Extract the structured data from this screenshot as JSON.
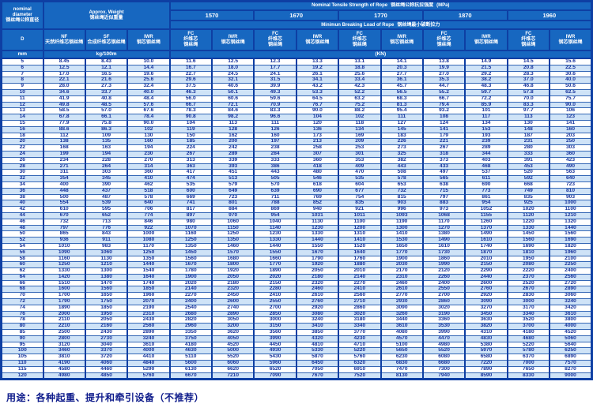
{
  "header": {
    "nominal_en1": "nominal",
    "nominal_en2": "diameter",
    "nominal_zh": "钢丝绳公称直径",
    "d": "D",
    "mm": "mm",
    "weight_en": "Approx. Weight",
    "weight_zh": "钢丝绳近似重量",
    "weight_unit": "kg/100m",
    "nf": "NF",
    "nf_zh": "天然纤维芯钢丝绳",
    "sf": "SF",
    "sf_zh": "合成纤维芯钢丝绳",
    "iwrw": "IWR",
    "iwrw_zh": "钢芯钢丝绳",
    "tensile_en": "Nominal Tensile Strength of Rope",
    "tensile_zh": "钢丝绳公称抗拉强度",
    "tensile_unit": "(MPa)",
    "strength_values": [
      "1570",
      "1670",
      "1770",
      "1870",
      "1960"
    ],
    "breaking_en": "Minimun Breaking Load of Rope",
    "breaking_zh": "钢丝绳最小破断拉力",
    "load_unit": "(KN)",
    "fc": "FC",
    "fc_zh1": "纤维芯",
    "fc_zh2": "钢丝绳",
    "iwr": "IWR",
    "iwr_zh": "钢芯钢丝绳"
  },
  "note": "用途：各种起重、提升和牵引设备（不推荐）",
  "colors": {
    "border": "#0e3fa3",
    "header_bg": "#1767c0",
    "stripe": "#cfe3f7",
    "data_text": "#17339c"
  },
  "table": {
    "rows": [
      [
        "5",
        "8.45",
        "8.43",
        "10.0",
        "11.6",
        "12.5",
        "12.3",
        "13.3",
        "13.1",
        "14.1",
        "13.8",
        "14.9",
        "14.5",
        "15.6"
      ],
      [
        "6",
        "12.5",
        "12.1",
        "14.4",
        "16.7",
        "18.0",
        "17.7",
        "19.2",
        "18.8",
        "20.3",
        "19.9",
        "21.5",
        "20.8",
        "22.5"
      ],
      [
        "7",
        "17.0",
        "16.5",
        "19.6",
        "22.7",
        "24.5",
        "24.1",
        "26.1",
        "25.6",
        "27.7",
        "27.0",
        "29.2",
        "28.3",
        "30.6"
      ],
      [
        "8",
        "22.1",
        "21.6",
        "25.6",
        "29.6",
        "32.1",
        "31.5",
        "34.1",
        "33.4",
        "36.1",
        "35.3",
        "38.2",
        "37.0",
        "40.0"
      ],
      [
        "9",
        "28.0",
        "27.3",
        "32.4",
        "37.5",
        "40.6",
        "39.9",
        "43.2",
        "42.3",
        "45.7",
        "44.7",
        "48.3",
        "46.8",
        "50.6"
      ],
      [
        "10",
        "34.6",
        "33.7",
        "40.0",
        "46.3",
        "50.1",
        "49.3",
        "53.3",
        "52.2",
        "56.5",
        "55.2",
        "59.7",
        "57.8",
        "62.5"
      ],
      [
        "11",
        "41.9",
        "40.8",
        "48.4",
        "56.0",
        "60.6",
        "59.6",
        "64.5",
        "63.2",
        "68.3",
        "66.7",
        "72.2",
        "70.0",
        "75.7"
      ],
      [
        "12",
        "49.8",
        "48.5",
        "57.6",
        "66.7",
        "72.1",
        "70.9",
        "76.7",
        "75.2",
        "81.3",
        "79.4",
        "85.9",
        "83.3",
        "90.0"
      ],
      [
        "13",
        "58.5",
        "57.0",
        "67.6",
        "78.3",
        "84.6",
        "83.3",
        "90.0",
        "88.2",
        "95.4",
        "93.2",
        "101",
        "97.7",
        "106"
      ],
      [
        "14",
        "67.8",
        "66.1",
        "78.4",
        "90.8",
        "98.2",
        "96.6",
        "104",
        "102",
        "111",
        "108",
        "117",
        "113",
        "123"
      ],
      [
        "15",
        "77.9",
        "75.8",
        "90.0",
        "104",
        "113",
        "111",
        "120",
        "118",
        "127",
        "124",
        "134",
        "130",
        "141"
      ],
      [
        "16",
        "88.6",
        "86.3",
        "102",
        "119",
        "128",
        "126",
        "136",
        "134",
        "145",
        "141",
        "153",
        "148",
        "160"
      ],
      [
        "18",
        "112",
        "109",
        "130",
        "150",
        "162",
        "160",
        "173",
        "169",
        "183",
        "179",
        "193",
        "187",
        "203"
      ],
      [
        "20",
        "138",
        "135",
        "160",
        "185",
        "200",
        "197",
        "213",
        "209",
        "226",
        "221",
        "239",
        "231",
        "250"
      ],
      [
        "22",
        "168",
        "163",
        "194",
        "224",
        "242",
        "238",
        "258",
        "253",
        "273",
        "267",
        "289",
        "280",
        "303"
      ],
      [
        "24",
        "199",
        "194",
        "230",
        "267",
        "289",
        "284",
        "307",
        "301",
        "325",
        "318",
        "344",
        "333",
        "360"
      ],
      [
        "26",
        "234",
        "228",
        "270",
        "313",
        "339",
        "333",
        "360",
        "353",
        "382",
        "373",
        "403",
        "391",
        "423"
      ],
      [
        "28",
        "271",
        "264",
        "314",
        "363",
        "393",
        "386",
        "418",
        "409",
        "443",
        "433",
        "468",
        "453",
        "490"
      ],
      [
        "30",
        "311",
        "303",
        "360",
        "417",
        "451",
        "443",
        "480",
        "470",
        "508",
        "497",
        "537",
        "520",
        "563"
      ],
      [
        "32",
        "354",
        "345",
        "410",
        "474",
        "513",
        "505",
        "546",
        "535",
        "578",
        "565",
        "611",
        "592",
        "640"
      ],
      [
        "34",
        "400",
        "390",
        "462",
        "535",
        "579",
        "570",
        "618",
        "604",
        "653",
        "638",
        "690",
        "668",
        "723"
      ],
      [
        "36",
        "448",
        "437",
        "518",
        "600",
        "649",
        "639",
        "690",
        "677",
        "732",
        "715",
        "773",
        "749",
        "810"
      ],
      [
        "38",
        "500",
        "487",
        "578",
        "669",
        "723",
        "711",
        "769",
        "754",
        "815",
        "797",
        "861",
        "835",
        "903"
      ],
      [
        "40",
        "554",
        "539",
        "640",
        "741",
        "801",
        "788",
        "852",
        "835",
        "903",
        "883",
        "954",
        "925",
        "1000"
      ],
      [
        "42",
        "610",
        "595",
        "706",
        "817",
        "884",
        "869",
        "940",
        "921",
        "996",
        "973",
        "1052",
        "1020",
        "1100"
      ],
      [
        "44",
        "670",
        "652",
        "774",
        "897",
        "970",
        "954",
        "1031",
        "1011",
        "1093",
        "1068",
        "1155",
        "1120",
        "1210"
      ],
      [
        "46",
        "732",
        "713",
        "846",
        "980",
        "1060",
        "1040",
        "1130",
        "1100",
        "1190",
        "1170",
        "1260",
        "1220",
        "1320"
      ],
      [
        "48",
        "797",
        "776",
        "922",
        "1070",
        "1150",
        "1140",
        "1230",
        "1200",
        "1300",
        "1270",
        "1370",
        "1330",
        "1440"
      ],
      [
        "50",
        "865",
        "843",
        "1000",
        "1160",
        "1250",
        "1230",
        "1330",
        "1310",
        "1410",
        "1380",
        "1490",
        "1450",
        "1560"
      ],
      [
        "52",
        "936",
        "911",
        "1080",
        "1250",
        "1350",
        "1330",
        "1440",
        "1410",
        "1530",
        "1490",
        "1610",
        "1560",
        "1690"
      ],
      [
        "54",
        "1010",
        "983",
        "1170",
        "1350",
        "1460",
        "1440",
        "1550",
        "1520",
        "1650",
        "1610",
        "1740",
        "1690",
        "1820"
      ],
      [
        "56",
        "1090",
        "1060",
        "1250",
        "1450",
        "1570",
        "1550",
        "1670",
        "1640",
        "1770",
        "1730",
        "1870",
        "1810",
        "1960"
      ],
      [
        "58",
        "1160",
        "1130",
        "1350",
        "1560",
        "1680",
        "1660",
        "1790",
        "1760",
        "1900",
        "1860",
        "2010",
        "1950",
        "2100"
      ],
      [
        "60",
        "1250",
        "1210",
        "1440",
        "1670",
        "1800",
        "1770",
        "1920",
        "1880",
        "2030",
        "1990",
        "2150",
        "2080",
        "2250"
      ],
      [
        "62",
        "1330",
        "1300",
        "1540",
        "1780",
        "1920",
        "1890",
        "2050",
        "2010",
        "2170",
        "2120",
        "2290",
        "2220",
        "2400"
      ],
      [
        "64",
        "1420",
        "1380",
        "1640",
        "1900",
        "2050",
        "2020",
        "2180",
        "2140",
        "2310",
        "2260",
        "2440",
        "2370",
        "2560"
      ],
      [
        "66",
        "1510",
        "1470",
        "1740",
        "2020",
        "2180",
        "2150",
        "2320",
        "2270",
        "2460",
        "2400",
        "2600",
        "2520",
        "2720"
      ],
      [
        "68",
        "1600",
        "1560",
        "1850",
        "2140",
        "2320",
        "2280",
        "2460",
        "2410",
        "2610",
        "2550",
        "2760",
        "2670",
        "2890"
      ],
      [
        "70",
        "1700",
        "1650",
        "1960",
        "2270",
        "2450",
        "2410",
        "2610",
        "2560",
        "2770",
        "2700",
        "2920",
        "2830",
        "3060"
      ],
      [
        "72",
        "1790",
        "1750",
        "2070",
        "2400",
        "2600",
        "2550",
        "2760",
        "2710",
        "2930",
        "2860",
        "3090",
        "3000",
        "3240"
      ],
      [
        "74",
        "1890",
        "1850",
        "2190",
        "2540",
        "2740",
        "2700",
        "2920",
        "2860",
        "3090",
        "3020",
        "3270",
        "3170",
        "3420"
      ],
      [
        "76",
        "2000",
        "1950",
        "2310",
        "2680",
        "2890",
        "2850",
        "3080",
        "3020",
        "3260",
        "3190",
        "3450",
        "3340",
        "3610"
      ],
      [
        "78",
        "2110",
        "2050",
        "2430",
        "2820",
        "3050",
        "3000",
        "3240",
        "3180",
        "3440",
        "3360",
        "3630",
        "3520",
        "3800"
      ],
      [
        "80",
        "2210",
        "2160",
        "2560",
        "2960",
        "3200",
        "3150",
        "3410",
        "3340",
        "3610",
        "3530",
        "3820",
        "3700",
        "4000"
      ],
      [
        "85",
        "2500",
        "2430",
        "2890",
        "3350",
        "3620",
        "3560",
        "3850",
        "3770",
        "4080",
        "3990",
        "4310",
        "4180",
        "4520"
      ],
      [
        "90",
        "2800",
        "2730",
        "3240",
        "3750",
        "4050",
        "3990",
        "4320",
        "4230",
        "4570",
        "4470",
        "4830",
        "4680",
        "5060"
      ],
      [
        "95",
        "3120",
        "3040",
        "3610",
        "4180",
        "4520",
        "4450",
        "4810",
        "4710",
        "5100",
        "4980",
        "5380",
        "5220",
        "5640"
      ],
      [
        "100",
        "3460",
        "3370",
        "4000",
        "4630",
        "5000",
        "4930",
        "5330",
        "5220",
        "5650",
        "5520",
        "5970",
        "5780",
        "6250"
      ],
      [
        "105",
        "3810",
        "3720",
        "4410",
        "5110",
        "5520",
        "5430",
        "5870",
        "5760",
        "6230",
        "6080",
        "6580",
        "6370",
        "6890"
      ],
      [
        "110",
        "4190",
        "4060",
        "4840",
        "5600",
        "6060",
        "5960",
        "6450",
        "6320",
        "6830",
        "6680",
        "7220",
        "7000",
        "7570"
      ],
      [
        "115",
        "4580",
        "4460",
        "5290",
        "6130",
        "6620",
        "6520",
        "7050",
        "6910",
        "7470",
        "7300",
        "7890",
        "7650",
        "8270"
      ],
      [
        "120",
        "4980",
        "4850",
        "5760",
        "6670",
        "7210",
        "7090",
        "7670",
        "7520",
        "8130",
        "7940",
        "8590",
        "8330",
        "9000"
      ]
    ]
  }
}
